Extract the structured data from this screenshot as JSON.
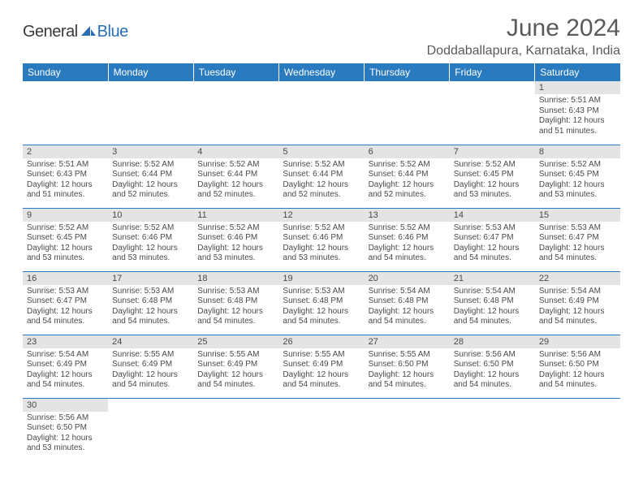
{
  "logo": {
    "text1": "General",
    "text2": "Blue"
  },
  "title": "June 2024",
  "location": "Doddaballapura, Karnataka, India",
  "colors": {
    "header_bg": "#2a7ac0",
    "header_fg": "#ffffff",
    "daynum_bg": "#e4e4e4",
    "text": "#4a4a4a",
    "rule": "#2a7ac0",
    "logo_blue": "#2a6fb5"
  },
  "weekdays": [
    "Sunday",
    "Monday",
    "Tuesday",
    "Wednesday",
    "Thursday",
    "Friday",
    "Saturday"
  ],
  "weeks": [
    [
      {
        "n": "",
        "lines": []
      },
      {
        "n": "",
        "lines": []
      },
      {
        "n": "",
        "lines": []
      },
      {
        "n": "",
        "lines": []
      },
      {
        "n": "",
        "lines": []
      },
      {
        "n": "",
        "lines": []
      },
      {
        "n": "1",
        "lines": [
          "Sunrise: 5:51 AM",
          "Sunset: 6:43 PM",
          "Daylight: 12 hours",
          "and 51 minutes."
        ]
      }
    ],
    [
      {
        "n": "2",
        "lines": [
          "Sunrise: 5:51 AM",
          "Sunset: 6:43 PM",
          "Daylight: 12 hours",
          "and 51 minutes."
        ]
      },
      {
        "n": "3",
        "lines": [
          "Sunrise: 5:52 AM",
          "Sunset: 6:44 PM",
          "Daylight: 12 hours",
          "and 52 minutes."
        ]
      },
      {
        "n": "4",
        "lines": [
          "Sunrise: 5:52 AM",
          "Sunset: 6:44 PM",
          "Daylight: 12 hours",
          "and 52 minutes."
        ]
      },
      {
        "n": "5",
        "lines": [
          "Sunrise: 5:52 AM",
          "Sunset: 6:44 PM",
          "Daylight: 12 hours",
          "and 52 minutes."
        ]
      },
      {
        "n": "6",
        "lines": [
          "Sunrise: 5:52 AM",
          "Sunset: 6:44 PM",
          "Daylight: 12 hours",
          "and 52 minutes."
        ]
      },
      {
        "n": "7",
        "lines": [
          "Sunrise: 5:52 AM",
          "Sunset: 6:45 PM",
          "Daylight: 12 hours",
          "and 53 minutes."
        ]
      },
      {
        "n": "8",
        "lines": [
          "Sunrise: 5:52 AM",
          "Sunset: 6:45 PM",
          "Daylight: 12 hours",
          "and 53 minutes."
        ]
      }
    ],
    [
      {
        "n": "9",
        "lines": [
          "Sunrise: 5:52 AM",
          "Sunset: 6:45 PM",
          "Daylight: 12 hours",
          "and 53 minutes."
        ]
      },
      {
        "n": "10",
        "lines": [
          "Sunrise: 5:52 AM",
          "Sunset: 6:46 PM",
          "Daylight: 12 hours",
          "and 53 minutes."
        ]
      },
      {
        "n": "11",
        "lines": [
          "Sunrise: 5:52 AM",
          "Sunset: 6:46 PM",
          "Daylight: 12 hours",
          "and 53 minutes."
        ]
      },
      {
        "n": "12",
        "lines": [
          "Sunrise: 5:52 AM",
          "Sunset: 6:46 PM",
          "Daylight: 12 hours",
          "and 53 minutes."
        ]
      },
      {
        "n": "13",
        "lines": [
          "Sunrise: 5:52 AM",
          "Sunset: 6:46 PM",
          "Daylight: 12 hours",
          "and 54 minutes."
        ]
      },
      {
        "n": "14",
        "lines": [
          "Sunrise: 5:53 AM",
          "Sunset: 6:47 PM",
          "Daylight: 12 hours",
          "and 54 minutes."
        ]
      },
      {
        "n": "15",
        "lines": [
          "Sunrise: 5:53 AM",
          "Sunset: 6:47 PM",
          "Daylight: 12 hours",
          "and 54 minutes."
        ]
      }
    ],
    [
      {
        "n": "16",
        "lines": [
          "Sunrise: 5:53 AM",
          "Sunset: 6:47 PM",
          "Daylight: 12 hours",
          "and 54 minutes."
        ]
      },
      {
        "n": "17",
        "lines": [
          "Sunrise: 5:53 AM",
          "Sunset: 6:48 PM",
          "Daylight: 12 hours",
          "and 54 minutes."
        ]
      },
      {
        "n": "18",
        "lines": [
          "Sunrise: 5:53 AM",
          "Sunset: 6:48 PM",
          "Daylight: 12 hours",
          "and 54 minutes."
        ]
      },
      {
        "n": "19",
        "lines": [
          "Sunrise: 5:53 AM",
          "Sunset: 6:48 PM",
          "Daylight: 12 hours",
          "and 54 minutes."
        ]
      },
      {
        "n": "20",
        "lines": [
          "Sunrise: 5:54 AM",
          "Sunset: 6:48 PM",
          "Daylight: 12 hours",
          "and 54 minutes."
        ]
      },
      {
        "n": "21",
        "lines": [
          "Sunrise: 5:54 AM",
          "Sunset: 6:48 PM",
          "Daylight: 12 hours",
          "and 54 minutes."
        ]
      },
      {
        "n": "22",
        "lines": [
          "Sunrise: 5:54 AM",
          "Sunset: 6:49 PM",
          "Daylight: 12 hours",
          "and 54 minutes."
        ]
      }
    ],
    [
      {
        "n": "23",
        "lines": [
          "Sunrise: 5:54 AM",
          "Sunset: 6:49 PM",
          "Daylight: 12 hours",
          "and 54 minutes."
        ]
      },
      {
        "n": "24",
        "lines": [
          "Sunrise: 5:55 AM",
          "Sunset: 6:49 PM",
          "Daylight: 12 hours",
          "and 54 minutes."
        ]
      },
      {
        "n": "25",
        "lines": [
          "Sunrise: 5:55 AM",
          "Sunset: 6:49 PM",
          "Daylight: 12 hours",
          "and 54 minutes."
        ]
      },
      {
        "n": "26",
        "lines": [
          "Sunrise: 5:55 AM",
          "Sunset: 6:49 PM",
          "Daylight: 12 hours",
          "and 54 minutes."
        ]
      },
      {
        "n": "27",
        "lines": [
          "Sunrise: 5:55 AM",
          "Sunset: 6:50 PM",
          "Daylight: 12 hours",
          "and 54 minutes."
        ]
      },
      {
        "n": "28",
        "lines": [
          "Sunrise: 5:56 AM",
          "Sunset: 6:50 PM",
          "Daylight: 12 hours",
          "and 54 minutes."
        ]
      },
      {
        "n": "29",
        "lines": [
          "Sunrise: 5:56 AM",
          "Sunset: 6:50 PM",
          "Daylight: 12 hours",
          "and 54 minutes."
        ]
      }
    ],
    [
      {
        "n": "30",
        "lines": [
          "Sunrise: 5:56 AM",
          "Sunset: 6:50 PM",
          "Daylight: 12 hours",
          "and 53 minutes."
        ]
      },
      {
        "n": "",
        "lines": []
      },
      {
        "n": "",
        "lines": []
      },
      {
        "n": "",
        "lines": []
      },
      {
        "n": "",
        "lines": []
      },
      {
        "n": "",
        "lines": []
      },
      {
        "n": "",
        "lines": []
      }
    ]
  ]
}
